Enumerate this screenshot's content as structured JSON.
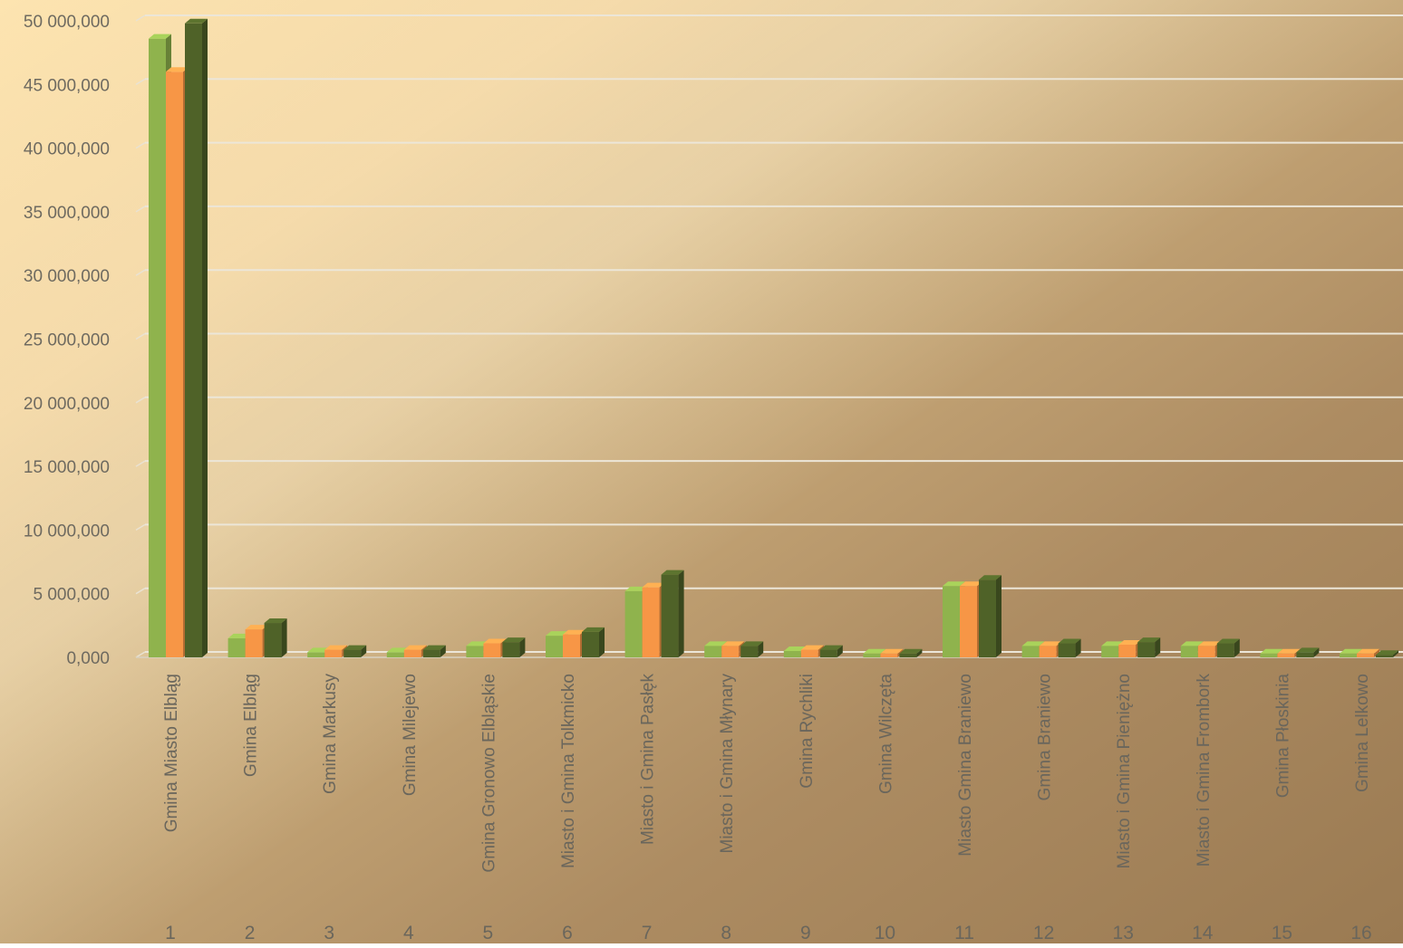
{
  "chart_data": {
    "type": "bar",
    "title": "",
    "xlabel": "",
    "ylabel": "",
    "ylim": [
      0,
      50000000
    ],
    "y_ticks": [
      "0,000",
      "5 000,000",
      "10 000,000",
      "15 000,000",
      "20 000,000",
      "25 000,000",
      "30 000,000",
      "35 000,000",
      "40 000,000",
      "45 000,000",
      "50 000,000"
    ],
    "grid": true,
    "legend": "none",
    "categories": [
      "Gmina Miasto Elbląg",
      "Gmina Elbląg",
      "Gmina Markusy",
      "Gmina Milejewo",
      "Gmina Gronowo Elbląskie",
      "Miasto i Gmina Tolkmicko",
      "Miasto i Gmina Pasłęk",
      "Miasto i Gmina Młynary",
      "Gmina Rychliki",
      "Gmina Wilczęta",
      "Miasto Gmina Braniewo",
      "Gmina Braniewo",
      "Miasto i Gmina Pieniężno",
      "Miasto i Gmina Frombork",
      "Gmina Płoskinia",
      "Gmina Lelkowo"
    ],
    "numbers": [
      "1",
      "2",
      "3",
      "4",
      "5",
      "6",
      "7",
      "8",
      "9",
      "10",
      "11",
      "12",
      "13",
      "14",
      "15",
      "16"
    ],
    "series": [
      {
        "color": "#8fb34d",
        "values": [
          48600000,
          1500000,
          400000,
          400000,
          900000,
          1700000,
          5200000,
          900000,
          500000,
          300000,
          5600000,
          900000,
          900000,
          900000,
          300000,
          300000
        ]
      },
      {
        "color": "#f79646",
        "values": [
          46000000,
          2200000,
          600000,
          600000,
          1100000,
          1800000,
          5500000,
          900000,
          600000,
          300000,
          5600000,
          900000,
          1000000,
          900000,
          300000,
          300000
        ]
      },
      {
        "color": "#4f6228",
        "values": [
          49800000,
          2700000,
          600000,
          600000,
          1200000,
          2000000,
          6500000,
          900000,
          600000,
          300000,
          6100000,
          1100000,
          1200000,
          1100000,
          400000,
          200000
        ]
      }
    ]
  }
}
